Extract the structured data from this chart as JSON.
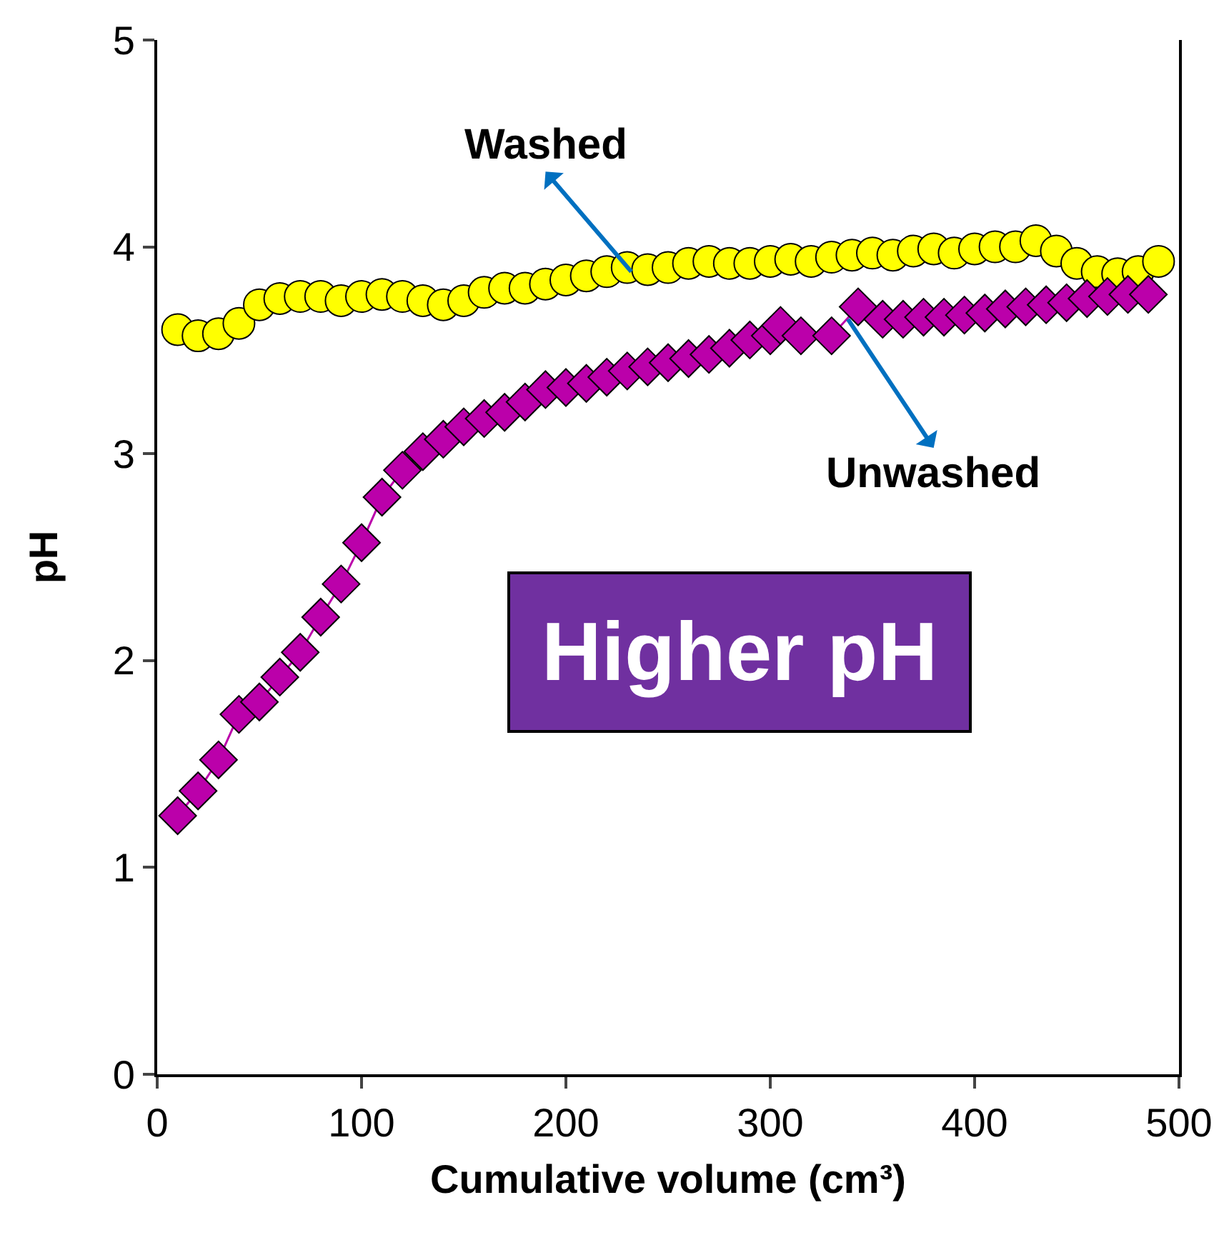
{
  "chart_data": {
    "type": "line",
    "xlabel": "Cumulative volume (cm³)",
    "ylabel": "pH",
    "xlim": [
      0,
      500
    ],
    "xticks": [
      0,
      100,
      200,
      300,
      400,
      500
    ],
    "ylim": [
      0,
      5
    ],
    "yticks": [
      0,
      1,
      2,
      3,
      4,
      5
    ],
    "line_style": "solid",
    "series": [
      {
        "type": "scatter",
        "color": "#ffff00",
        "marker": "circle",
        "x": [
          10,
          20,
          30,
          40,
          50,
          60,
          70,
          80,
          90,
          100,
          110,
          120,
          130,
          140,
          150,
          160,
          170,
          180,
          190,
          200,
          210,
          220,
          230,
          240,
          250,
          260,
          270,
          280,
          290,
          300,
          310,
          320,
          330,
          340,
          350,
          360,
          370,
          380,
          390,
          400,
          410,
          420,
          430,
          440,
          450,
          460,
          470,
          480,
          490
        ],
        "values": [
          3.6,
          3.57,
          3.58,
          3.63,
          3.72,
          3.75,
          3.76,
          3.76,
          3.74,
          3.76,
          3.77,
          3.76,
          3.74,
          3.72,
          3.74,
          3.78,
          3.8,
          3.8,
          3.82,
          3.84,
          3.86,
          3.88,
          3.9,
          3.89,
          3.9,
          3.92,
          3.93,
          3.92,
          3.92,
          3.93,
          3.94,
          3.93,
          3.95,
          3.96,
          3.97,
          3.96,
          3.98,
          3.99,
          3.97,
          3.99,
          4.0,
          4.0,
          4.03,
          3.98,
          3.92,
          3.88,
          3.87,
          3.88,
          3.93
        ]
      },
      {
        "color": "#bb00aa",
        "marker": "diamond",
        "x": [
          10,
          20,
          30,
          40,
          50,
          60,
          70,
          80,
          90,
          100,
          110,
          120,
          130,
          140,
          150,
          160,
          170,
          180,
          190,
          200,
          210,
          220,
          230,
          240,
          250,
          260,
          270,
          280,
          290,
          300,
          305,
          315,
          330,
          343,
          355,
          365,
          375,
          385,
          395,
          405,
          415,
          425,
          435,
          445,
          455,
          465,
          475,
          485
        ],
        "values": [
          1.25,
          1.37,
          1.52,
          1.74,
          1.8,
          1.92,
          2.04,
          2.21,
          2.37,
          2.57,
          2.79,
          2.92,
          3.01,
          3.07,
          3.13,
          3.17,
          3.2,
          3.25,
          3.31,
          3.32,
          3.34,
          3.37,
          3.4,
          3.42,
          3.44,
          3.46,
          3.48,
          3.51,
          3.55,
          3.57,
          3.62,
          3.57,
          3.57,
          3.71,
          3.65,
          3.65,
          3.66,
          3.66,
          3.67,
          3.68,
          3.7,
          3.71,
          3.72,
          3.73,
          3.75,
          3.76,
          3.77,
          3.77
        ]
      }
    ],
    "annotations": [
      {
        "text": "Washed",
        "x": 232,
        "y": 3.88
      },
      {
        "text": "Unwashed",
        "x": 338,
        "y": 3.65
      },
      "Higher pH"
    ]
  }
}
